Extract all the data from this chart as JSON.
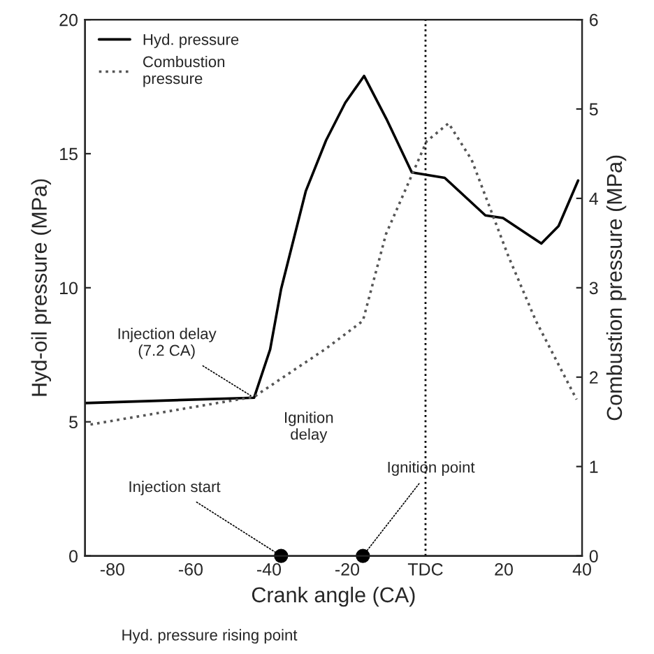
{
  "chart_data": {
    "type": "line",
    "xlabel": "Crank angle (CA)",
    "ylabel": "Hyd-oil pressure (MPa)",
    "y2label": "Combustion pressure (MPa)",
    "xlim": [
      -87,
      40
    ],
    "xticks": [
      -80,
      -60,
      -40,
      -20,
      {
        "value": 0,
        "label": "TDC"
      },
      20,
      40
    ],
    "ylim": [
      0,
      20
    ],
    "yticks": [
      0,
      5,
      10,
      15,
      20
    ],
    "y2lim": [
      0,
      6
    ],
    "y2ticks": [
      0,
      1,
      2,
      3,
      4,
      5,
      6
    ],
    "grid": false,
    "legend": "top left",
    "marker": "none",
    "series": [
      {
        "name": "Hyd. pressure",
        "color": "#000000",
        "line_style": "solid",
        "x": [
          -87,
          -43.8,
          -39.7,
          -36.9,
          -30.6,
          -25.4,
          -20.5,
          -15.7,
          -10,
          -3.5,
          4.9,
          15.3,
          19.8,
          29.6,
          34,
          39
        ],
        "values": [
          5.7,
          5.9,
          7.7,
          9.95,
          13.6,
          15.5,
          16.9,
          17.9,
          16.3,
          14.3,
          14.1,
          12.7,
          12.6,
          11.65,
          12.3,
          14.0
        ]
      },
      {
        "name": "Combustion\npressure",
        "color": "#555555",
        "line_style": "dotted",
        "axis": "y2",
        "x": [
          -85.6,
          -43.8,
          -25.4,
          -16,
          -10.1,
          0.3,
          5.9,
          11.8,
          21.2,
          28.2,
          38.6
        ],
        "values": [
          1.47,
          1.78,
          2.32,
          2.63,
          3.6,
          4.64,
          4.84,
          4.43,
          3.35,
          2.63,
          1.75
        ]
      },
      {
        "type": "scatter",
        "color": "#000000",
        "marker": "circle",
        "x": [
          -36.9,
          -16
        ],
        "values": [
          0,
          0
        ]
      }
    ],
    "ref_lines": [
      {
        "axis": "x",
        "value": 0,
        "line_style": "dotted",
        "color": "#000000"
      }
    ],
    "annotations": [
      {
        "text": "Injection delay\n(7.2 CA)",
        "x": -43.8,
        "y": 5.9
      },
      "Ignition\ndelay",
      {
        "text": "Injection start",
        "x": -36.9,
        "y": 0
      },
      {
        "text": "Ignition point",
        "x": -16,
        "y": 0
      },
      "Hyd. pressure rising point"
    ]
  }
}
